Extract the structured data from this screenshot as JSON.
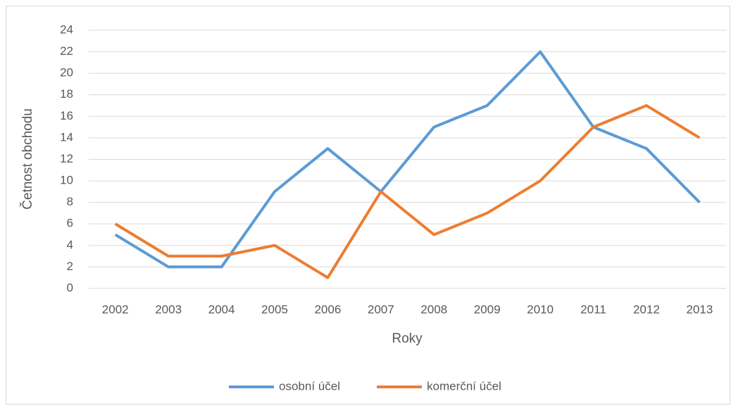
{
  "chart_data": {
    "type": "line",
    "x_label": "Roky",
    "y_label": "Četnost obchodu",
    "categories": [
      "2002",
      "2003",
      "2004",
      "2005",
      "2006",
      "2007",
      "2008",
      "2009",
      "2010",
      "2011",
      "2012",
      "2013"
    ],
    "series": [
      {
        "name": "osobní účel",
        "color": "#5b9bd5",
        "values": [
          5,
          2,
          2,
          9,
          13,
          9,
          15,
          17,
          22,
          15,
          13,
          8
        ]
      },
      {
        "name": "komerční účel",
        "color": "#ed7d31",
        "values": [
          6,
          3,
          3,
          4,
          1,
          9,
          5,
          7,
          10,
          15,
          17,
          14
        ]
      }
    ],
    "ylim": [
      0,
      24
    ],
    "yticks": [
      0,
      2,
      4,
      6,
      8,
      10,
      12,
      14,
      16,
      18,
      20,
      22,
      24
    ],
    "grid": true,
    "legend": "bottom"
  }
}
